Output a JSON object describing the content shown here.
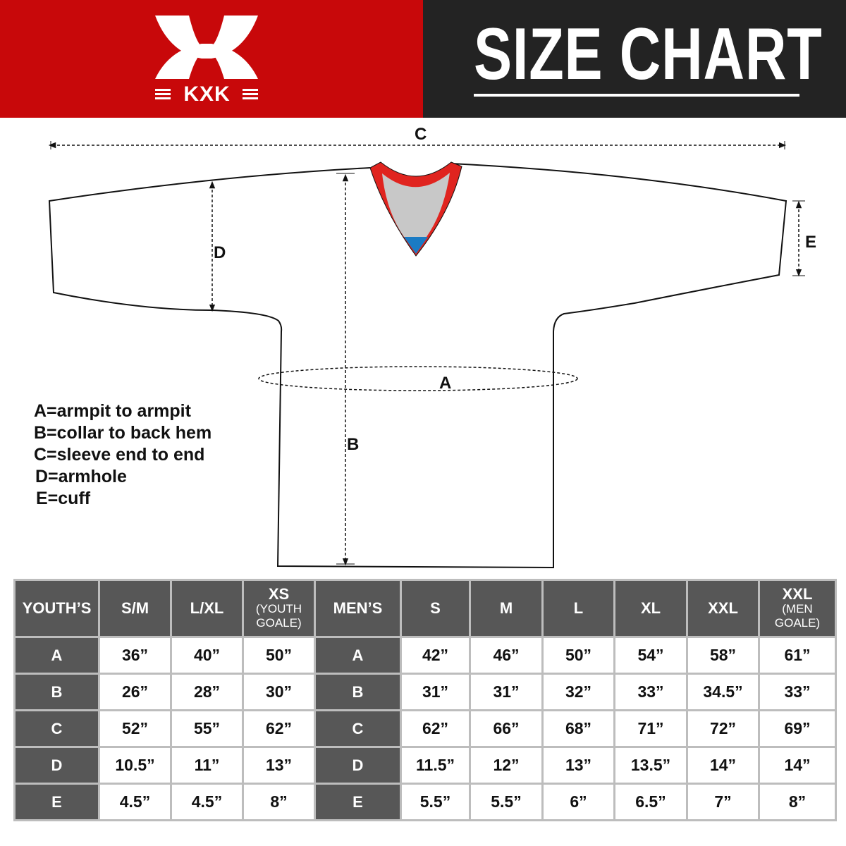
{
  "header": {
    "brand": "KXK",
    "title": "SIZE CHART",
    "colors": {
      "brand_red": "#c8080a",
      "title_bg": "#232323",
      "collar_red": "#e0241f",
      "collar_grey": "#c8c8c8",
      "collar_blue": "#1a7bc4"
    }
  },
  "diagram": {
    "labels": {
      "a": "A",
      "b": "B",
      "c": "C",
      "d": "D",
      "e": "E"
    }
  },
  "legend": [
    "A=armpit to armpit",
    "B=collar to back hem",
    "C=sleeve end to end",
    "D=armhole",
    "E=cuff"
  ],
  "table": {
    "youth_header": "YOUTH’S",
    "youth_sizes": [
      {
        "main": "S/M",
        "sub": ""
      },
      {
        "main": "L/XL",
        "sub": ""
      },
      {
        "main": "XS",
        "sub": "(YOUTH GOALE)"
      }
    ],
    "men_header": "MEN’S",
    "men_sizes": [
      {
        "main": "S",
        "sub": ""
      },
      {
        "main": "M",
        "sub": ""
      },
      {
        "main": "L",
        "sub": ""
      },
      {
        "main": "XL",
        "sub": ""
      },
      {
        "main": "XXL",
        "sub": ""
      },
      {
        "main": "XXL",
        "sub": "(MEN GOALE)"
      }
    ],
    "rows": [
      {
        "label": "A",
        "youth": [
          "36”",
          "40”",
          "50”"
        ],
        "men": [
          "42”",
          "46”",
          "50”",
          "54”",
          "58”",
          "61”"
        ]
      },
      {
        "label": "B",
        "youth": [
          "26”",
          "28”",
          "30”"
        ],
        "men": [
          "31”",
          "31”",
          "32”",
          "33”",
          "34.5”",
          "33”"
        ]
      },
      {
        "label": "C",
        "youth": [
          "52”",
          "55”",
          "62”"
        ],
        "men": [
          "62”",
          "66”",
          "68”",
          "71”",
          "72”",
          "69”"
        ]
      },
      {
        "label": "D",
        "youth": [
          "10.5”",
          "11”",
          "13”"
        ],
        "men": [
          "11.5”",
          "12”",
          "13”",
          "13.5”",
          "14”",
          "14”"
        ]
      },
      {
        "label": "E",
        "youth": [
          "4.5”",
          "4.5”",
          "8”"
        ],
        "men": [
          "5.5”",
          "5.5”",
          "6”",
          "6.5”",
          "7”",
          "8”"
        ]
      }
    ]
  }
}
